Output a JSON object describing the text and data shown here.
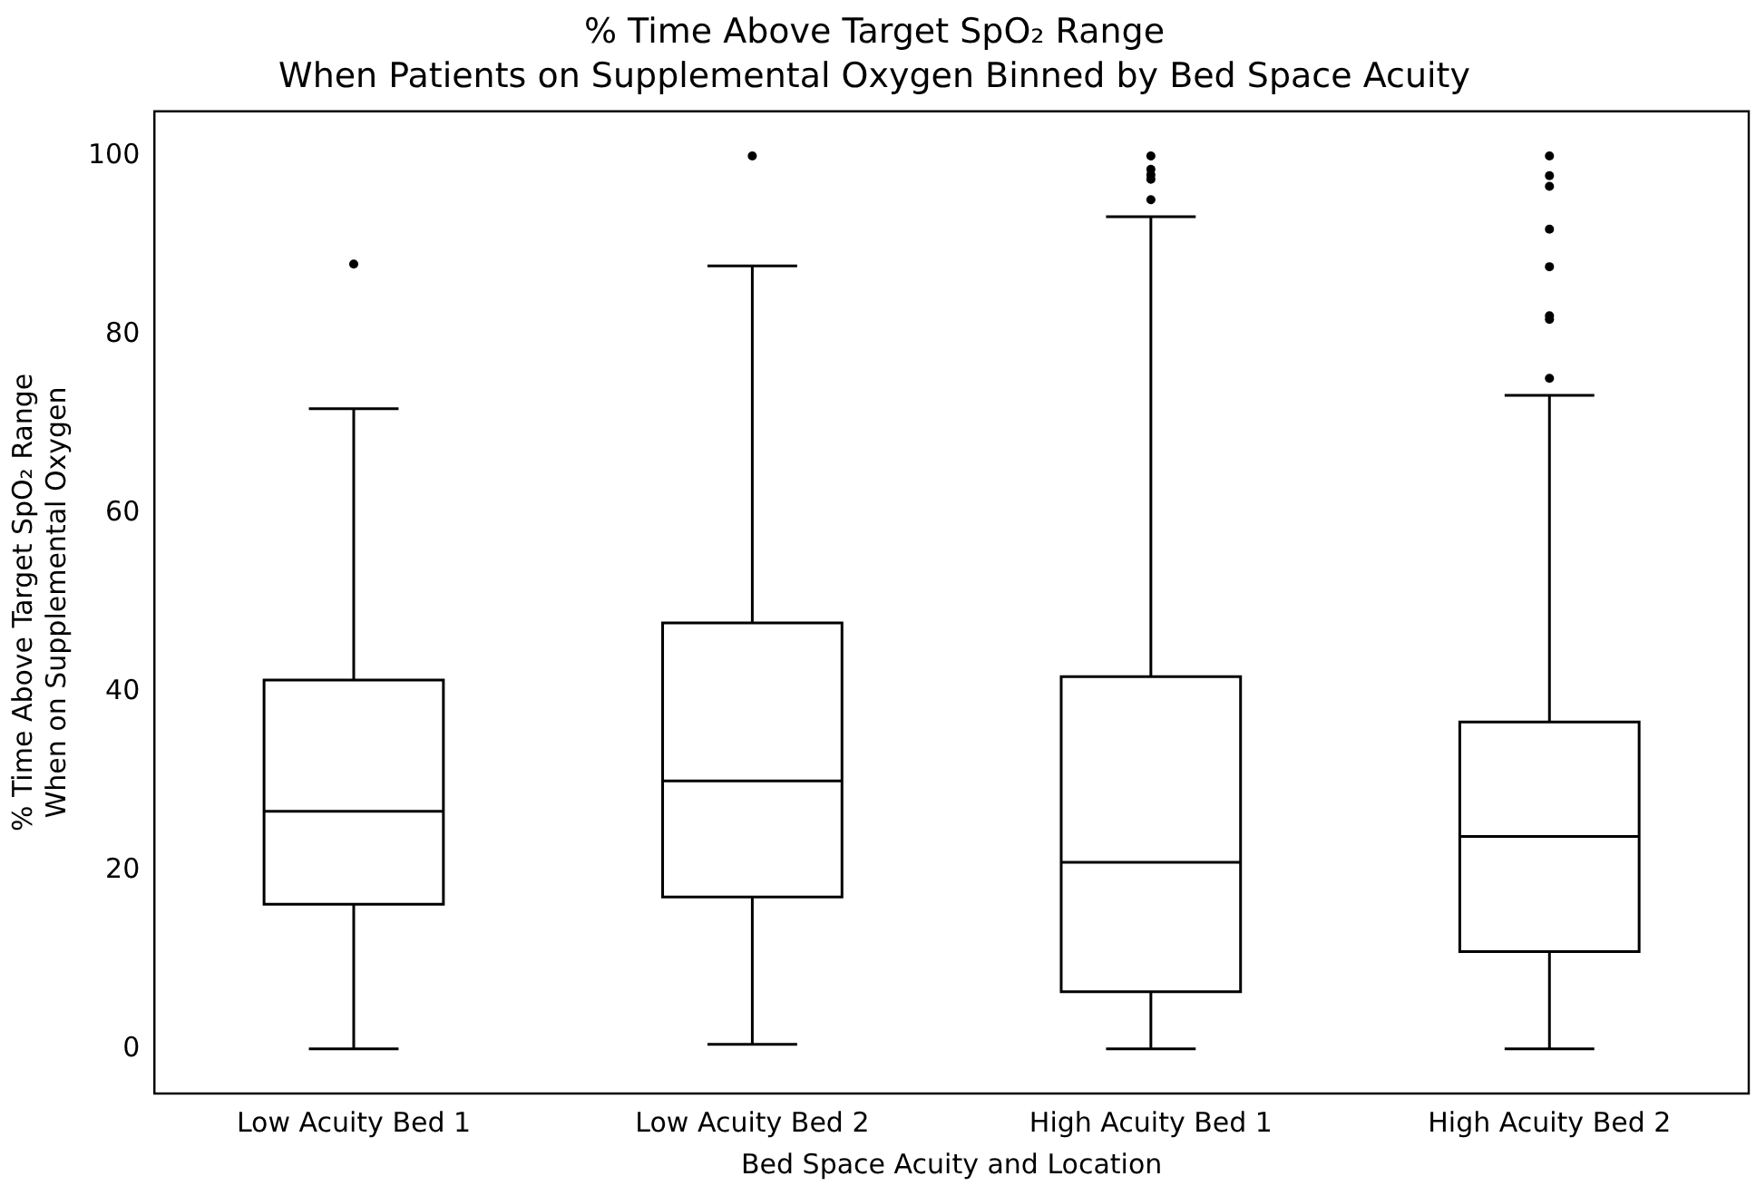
{
  "chart_data": {
    "type": "box",
    "title": "% Time Above Target SpO₂ Range\nWhen Patients on Supplemental Oxygen Binned by Bed Space Acuity",
    "xlabel": "Bed Space Acuity and Location",
    "ylabel": "% Time Above Target SpO₂ Range\nWhen on Supplemental Oxygen",
    "categories": [
      "Low Acuity Bed 1",
      "Low Acuity Bed 2",
      "High Acuity Bed 1",
      "High Acuity Bed 2"
    ],
    "color": "#000000",
    "ylim": [
      -5,
      105
    ],
    "yticks": [
      0,
      20,
      40,
      60,
      80,
      100
    ],
    "grid": false,
    "legend": false,
    "boxes": [
      {
        "low": 0,
        "q1": 16.2,
        "median": 26.6,
        "q3": 41.3,
        "high": 71.7,
        "outliers": [
          87.9
        ]
      },
      {
        "low": 0.5,
        "q1": 17,
        "median": 30,
        "q3": 47.7,
        "high": 87.7,
        "outliers": [
          100
        ]
      },
      {
        "low": 0,
        "q1": 6.4,
        "median": 20.9,
        "q3": 41.7,
        "high": 93.2,
        "outliers": [
          95.1,
          97.4,
          97.9,
          98.5,
          100
        ]
      },
      {
        "low": 0,
        "q1": 10.9,
        "median": 23.8,
        "q3": 36.6,
        "high": 73.2,
        "outliers": [
          75.1,
          81.7,
          82.1,
          87.6,
          91.8,
          96.6,
          97.8,
          100
        ]
      }
    ]
  }
}
